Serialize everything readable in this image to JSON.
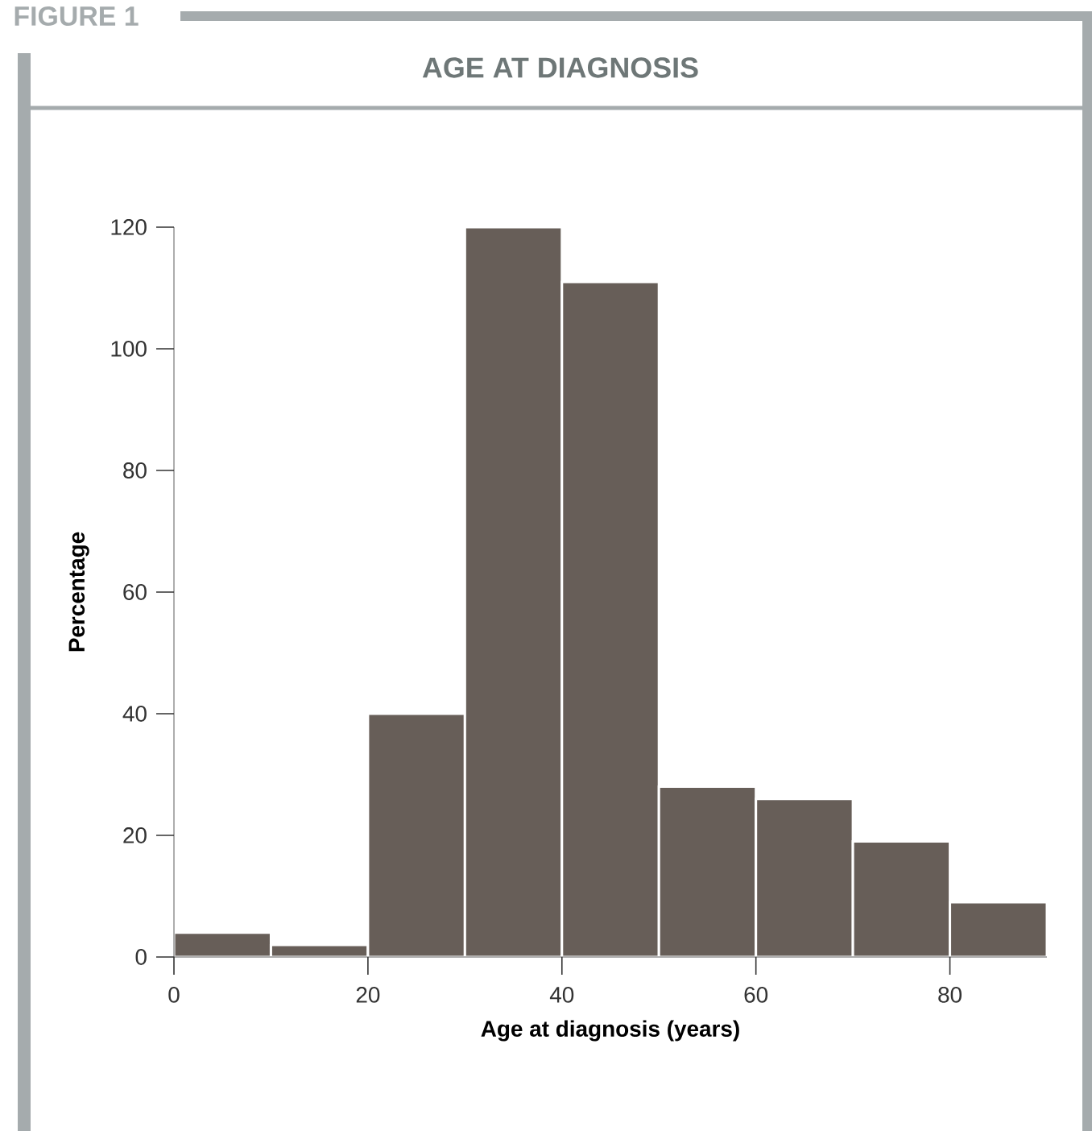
{
  "chart_data": {
    "type": "histogram",
    "title": "AGE AT DIAGNOSIS",
    "annotations": [
      "FIGURE 1"
    ],
    "xlabel": "Age at diagnosis (years)",
    "ylabel": "Percentage",
    "bins": [
      0,
      10,
      20,
      30,
      40,
      50,
      60,
      70,
      80,
      90
    ],
    "values": [
      4,
      2,
      40,
      120,
      111,
      28,
      26,
      19,
      9
    ],
    "color": "#675e58",
    "xlim": [
      0,
      90
    ],
    "ylim": [
      0,
      120
    ],
    "xticks": [
      0,
      20,
      40,
      60,
      80
    ],
    "yticks": [
      0,
      20,
      40,
      60,
      80,
      100,
      120
    ],
    "grid": false
  }
}
